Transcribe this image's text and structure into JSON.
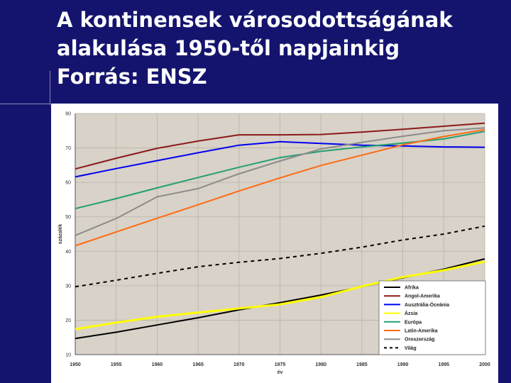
{
  "slide": {
    "title_lines": [
      "A kontinensek városodottságának",
      "alakulása 1950-től napjainkig",
      "Forrás: ENSZ"
    ]
  },
  "colors": {
    "slide_background": "#14146e",
    "plot_background": "#d8d2c8"
  },
  "chart_data": {
    "type": "line",
    "xlabel": "év",
    "ylabel": "százalék",
    "x": [
      1950,
      1955,
      1960,
      1965,
      1970,
      1975,
      1980,
      1985,
      1990,
      1995,
      2000
    ],
    "xlim": [
      1950,
      2000
    ],
    "ylim": [
      10,
      80
    ],
    "x_ticks": [
      "1950",
      "1955",
      "1960",
      "1965",
      "1970",
      "1975",
      "1980",
      "1985",
      "1990",
      "1995",
      "2000"
    ],
    "y_ticks": [
      "10",
      "20",
      "30",
      "40",
      "50",
      "60",
      "70",
      "80"
    ],
    "grid": true,
    "legend_position": "bottom-right",
    "series": [
      {
        "name": "Afrika",
        "color": "#000000",
        "dashed": false,
        "values": [
          14.7,
          16.5,
          18.6,
          20.7,
          23.0,
          25.1,
          27.3,
          29.7,
          32.3,
          34.8,
          37.8
        ]
      },
      {
        "name": "Angol-Amerika",
        "color": "#8b1a1a",
        "dashed": false,
        "values": [
          63.9,
          67.0,
          69.9,
          72.0,
          73.8,
          73.8,
          73.9,
          74.6,
          75.4,
          76.3,
          77.2
        ]
      },
      {
        "name": "Ausztrália-Óceánia",
        "color": "#0000ee",
        "dashed": false,
        "values": [
          61.6,
          64.0,
          66.3,
          68.6,
          70.8,
          71.8,
          71.3,
          70.8,
          70.6,
          70.3,
          70.2
        ]
      },
      {
        "name": "Ázsia",
        "color": "#ffff00",
        "dashed": false,
        "values": [
          17.4,
          19.3,
          21.0,
          22.2,
          23.4,
          24.6,
          26.7,
          29.8,
          32.5,
          34.5,
          37.0
        ]
      },
      {
        "name": "Európa",
        "color": "#22a070",
        "dashed": false,
        "values": [
          52.4,
          55.3,
          58.4,
          61.4,
          64.4,
          67.2,
          69.0,
          70.3,
          71.4,
          72.6,
          74.8
        ]
      },
      {
        "name": "Latin-Amerika",
        "color": "#ff6a10",
        "dashed": false,
        "values": [
          41.6,
          45.6,
          49.6,
          53.5,
          57.5,
          61.3,
          64.9,
          67.9,
          70.9,
          73.3,
          75.3
        ]
      },
      {
        "name": "Oroszország",
        "color": "#8c8c8c",
        "dashed": false,
        "values": [
          44.6,
          49.5,
          55.8,
          58.2,
          62.5,
          66.2,
          69.7,
          71.6,
          73.4,
          75.0,
          75.8
        ]
      },
      {
        "name": "Világ",
        "color": "#000000",
        "dashed": true,
        "values": [
          29.7,
          31.6,
          33.6,
          35.5,
          36.8,
          37.9,
          39.4,
          41.2,
          43.3,
          45.0,
          47.3
        ]
      }
    ]
  }
}
